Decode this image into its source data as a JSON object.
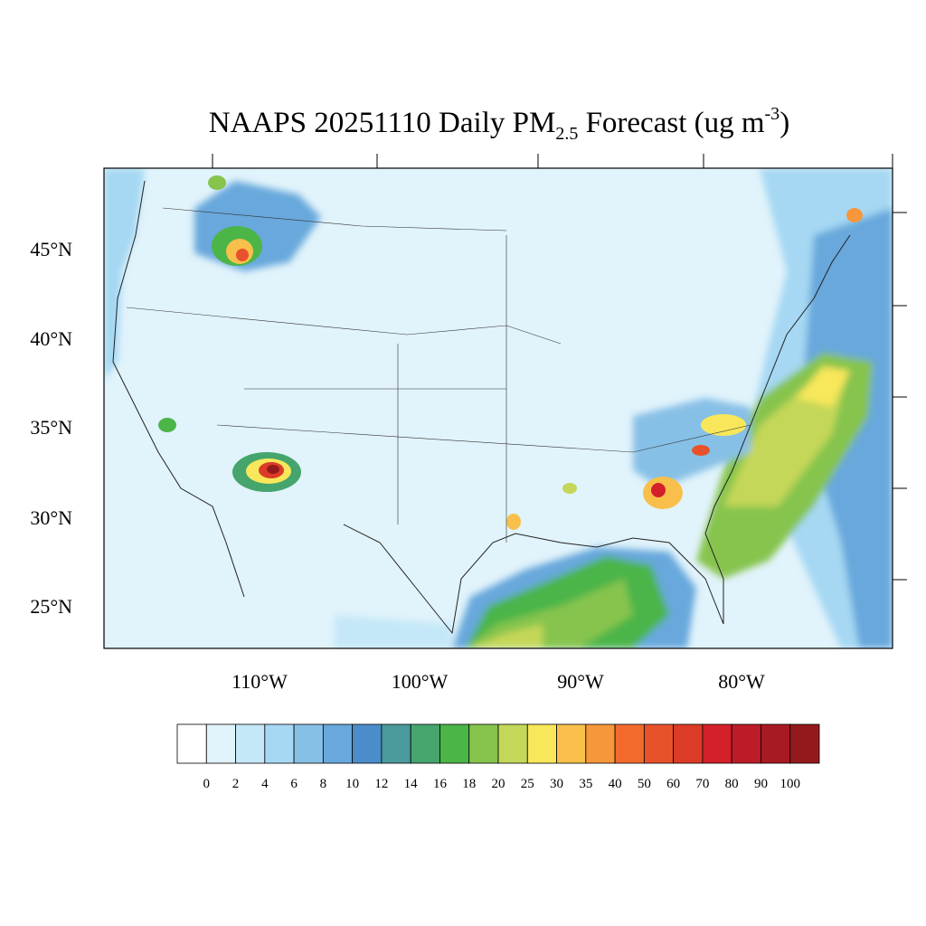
{
  "map": {
    "title": {
      "main": "NAAPS 20251110 Daily PM",
      "sub": "2.5",
      "rest": " Forecast (ug m",
      "sup": "-3",
      "end": ")"
    },
    "lat_labels": [
      "45°N",
      "40°N",
      "35°N",
      "30°N",
      "25°N"
    ],
    "lon_labels": [
      "110°W",
      "100°W",
      "90°W",
      "80°W"
    ],
    "colorbar": {
      "colors": [
        "#ffffff",
        "#e1f3fb",
        "#c5e8f8",
        "#a6d8f3",
        "#87c0e6",
        "#68a8dc",
        "#4a8dca",
        "#4b9a9c",
        "#45a56d",
        "#4bb548",
        "#86c44d",
        "#c4d758",
        "#f8e75a",
        "#f8c04b",
        "#f6973b",
        "#f26b2c",
        "#e8522b",
        "#dc3b27",
        "#d4202b",
        "#be1b28",
        "#a81a23",
        "#931a1c"
      ],
      "levels": [
        0,
        2,
        4,
        6,
        8,
        10,
        12,
        14,
        16,
        18,
        20,
        25,
        30,
        35,
        40,
        50,
        60,
        70,
        80,
        90,
        100
      ]
    }
  }
}
